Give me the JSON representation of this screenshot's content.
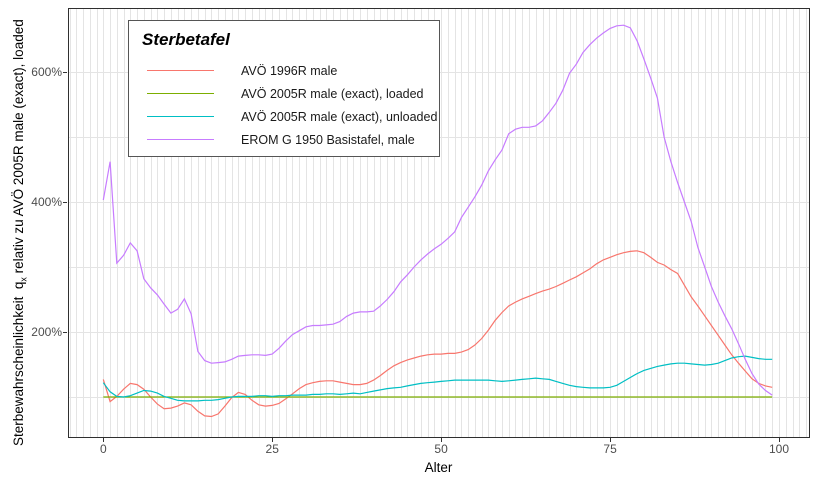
{
  "axes": {
    "x": {
      "label": "Alter",
      "tick_labels": [
        "0",
        "25",
        "50",
        "75",
        "100"
      ],
      "tick_values": [
        0,
        25,
        50,
        75,
        100
      ],
      "minor_grid_step": 1
    },
    "y": {
      "title_part1": "Sterbewahrscheinlichkeit  q",
      "title_sub": "x",
      "title_part2": " relativ zu AVÖ 2005R male (exact), loaded",
      "tick_labels": [
        "200%",
        "400%",
        "600%"
      ],
      "tick_values": [
        200,
        400,
        600
      ],
      "grid_values": [
        100,
        200,
        300,
        400,
        500,
        600,
        700
      ]
    }
  },
  "legend": {
    "title": "Sterbetafel",
    "items": [
      {
        "label": "AVÖ 1996R male",
        "color": "#F8766D"
      },
      {
        "label": "AVÖ 2005R male (exact), loaded",
        "color": "#7CAE00"
      },
      {
        "label": "AVÖ 2005R male (exact), unloaded",
        "color": "#00BFC4"
      },
      {
        "label": "EROM G 1950 Basistafel, male",
        "color": "#C77CFF"
      }
    ]
  },
  "chart_data": {
    "type": "line",
    "title": "",
    "xlabel": "Alter",
    "ylabel": "Sterbewahrscheinlichkeit qx relativ zu AVÖ 2005R male (exact), loaded",
    "y_unit": "%",
    "x_start": 0,
    "x_step": 1,
    "xlim": [
      -5,
      104
    ],
    "ylim": [
      40,
      700
    ],
    "grid": "on",
    "legend_position": "top-left-inside",
    "series": [
      {
        "name": "AVÖ 1996R male",
        "color": "#F8766D",
        "values": [
          127,
          93,
          101,
          112,
          121,
          119,
          112,
          100,
          89,
          82,
          83,
          86,
          91,
          88,
          78,
          71,
          70,
          74,
          86,
          99,
          107,
          104,
          95,
          88,
          86,
          87,
          90,
          97,
          105,
          113,
          119,
          122,
          124,
          125,
          125,
          123,
          121,
          119,
          119,
          121,
          126,
          133,
          141,
          148,
          153,
          157,
          160,
          163,
          165,
          166,
          166,
          167,
          167,
          169,
          173,
          180,
          190,
          203,
          218,
          230,
          240,
          246,
          251,
          255,
          259,
          263,
          266,
          270,
          275,
          280,
          285,
          291,
          297,
          305,
          311,
          315,
          319,
          322,
          324,
          325,
          322,
          315,
          307,
          303,
          296,
          290,
          272,
          254,
          240,
          225,
          210,
          195,
          180,
          165,
          152,
          140,
          128,
          121,
          117,
          115
        ]
      },
      {
        "name": "AVÖ 2005R male (exact), loaded",
        "color": "#7CAE00",
        "constant": 100,
        "length": 100
      },
      {
        "name": "AVÖ 2005R male (exact), unloaded",
        "color": "#00BFC4",
        "values": [
          122,
          108,
          101,
          100,
          102,
          106,
          110,
          109,
          106,
          101,
          98,
          95,
          94,
          94,
          94,
          95,
          95,
          96,
          98,
          100,
          101,
          101,
          101,
          102,
          102,
          101,
          102,
          102,
          103,
          103,
          103,
          104,
          104,
          105,
          105,
          104,
          105,
          106,
          105,
          107,
          109,
          111,
          113,
          114,
          115,
          117,
          119,
          121,
          122,
          123,
          124,
          125,
          126,
          126,
          126,
          126,
          126,
          126,
          125,
          124,
          125,
          126,
          127,
          128,
          129,
          128,
          127,
          124,
          121,
          118,
          116,
          115,
          114,
          114,
          114,
          115,
          118,
          124,
          130,
          136,
          141,
          144,
          147,
          149,
          151,
          152,
          152,
          151,
          150,
          149,
          150,
          152,
          156,
          160,
          162,
          163,
          161,
          159,
          158,
          158
        ]
      },
      {
        "name": "EROM G 1950 Basistafel, male",
        "color": "#C77CFF",
        "values": [
          403,
          462,
          306,
          318,
          337,
          325,
          282,
          268,
          257,
          243,
          229,
          235,
          251,
          228,
          170,
          156,
          152,
          153,
          154,
          158,
          163,
          164,
          165,
          165,
          164,
          166,
          175,
          186,
          196,
          202,
          208,
          210,
          210,
          211,
          212,
          216,
          224,
          229,
          231,
          231,
          232,
          240,
          250,
          262,
          277,
          288,
          300,
          311,
          320,
          328,
          335,
          344,
          354,
          376,
          392,
          408,
          426,
          448,
          465,
          480,
          505,
          512,
          515,
          515,
          517,
          525,
          538,
          552,
          572,
          598,
          612,
          630,
          642,
          652,
          660,
          667,
          671,
          672,
          668,
          648,
          620,
          591,
          560,
          500,
          462,
          430,
          400,
          370,
          330,
          300,
          270,
          246,
          225,
          205,
          182,
          158,
          136,
          120,
          110,
          103
        ]
      }
    ]
  }
}
